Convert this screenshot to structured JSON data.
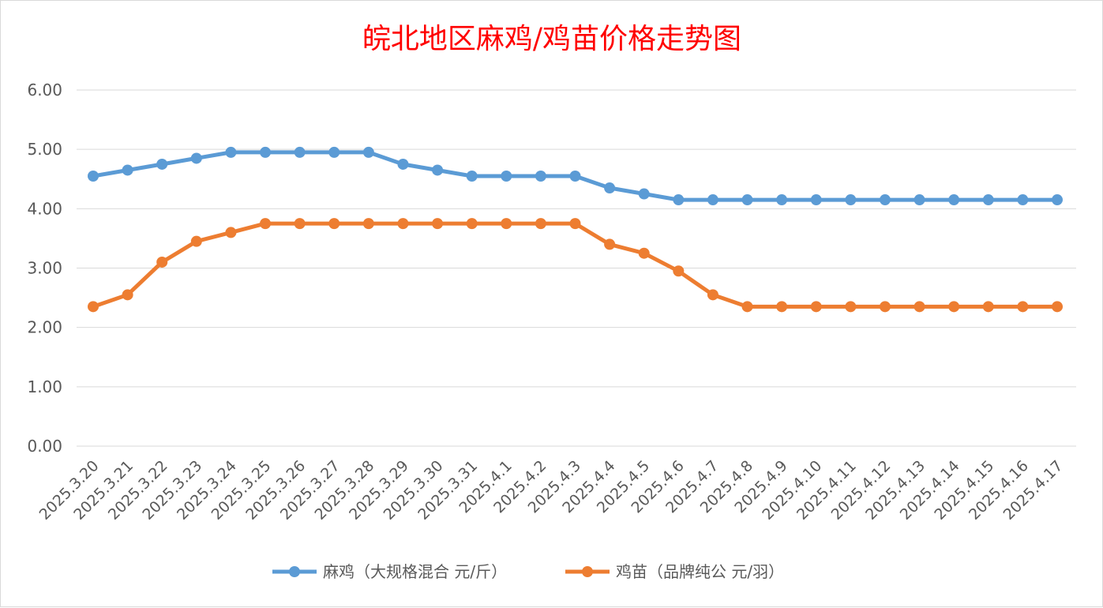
{
  "chart_data": {
    "type": "line",
    "title": "皖北地区麻鸡/鸡苗价格走势图",
    "xlabel": "",
    "ylabel": "",
    "ylim": [
      0,
      6
    ],
    "yticks": [
      "0.00",
      "1.00",
      "2.00",
      "3.00",
      "4.00",
      "5.00",
      "6.00"
    ],
    "grid": true,
    "legend_position": "bottom",
    "categories": [
      "2025.3.20",
      "2025.3.21",
      "2025.3.22",
      "2025.3.23",
      "2025.3.24",
      "2025.3.25",
      "2025.3.26",
      "2025.3.27",
      "2025.3.28",
      "2025.3.29",
      "2025.3.30",
      "2025.3.31",
      "2025.4.1",
      "2025.4.2",
      "2025.4.3",
      "2025.4.4",
      "2025.4.5",
      "2025.4.6",
      "2025.4.7",
      "2025.4.8",
      "2025.4.9",
      "2025.4.10",
      "2025.4.11",
      "2025.4.12",
      "2025.4.13",
      "2025.4.14",
      "2025.4.15",
      "2025.4.16",
      "2025.4.17"
    ],
    "series": [
      {
        "name": "麻鸡（大规格混合 元/斤）",
        "color": "#5b9bd5",
        "values": [
          4.55,
          4.65,
          4.75,
          4.85,
          4.95,
          4.95,
          4.95,
          4.95,
          4.95,
          4.75,
          4.65,
          4.55,
          4.55,
          4.55,
          4.55,
          4.35,
          4.25,
          4.15,
          4.15,
          4.15,
          4.15,
          4.15,
          4.15,
          4.15,
          4.15,
          4.15,
          4.15,
          4.15,
          4.15
        ]
      },
      {
        "name": "鸡苗（品牌纯公 元/羽）",
        "color": "#ed7d31",
        "values": [
          2.35,
          2.55,
          3.1,
          3.45,
          3.6,
          3.75,
          3.75,
          3.75,
          3.75,
          3.75,
          3.75,
          3.75,
          3.75,
          3.75,
          3.75,
          3.4,
          3.25,
          2.95,
          2.55,
          2.35,
          2.35,
          2.35,
          2.35,
          2.35,
          2.35,
          2.35,
          2.35,
          2.35,
          2.35
        ]
      }
    ]
  }
}
